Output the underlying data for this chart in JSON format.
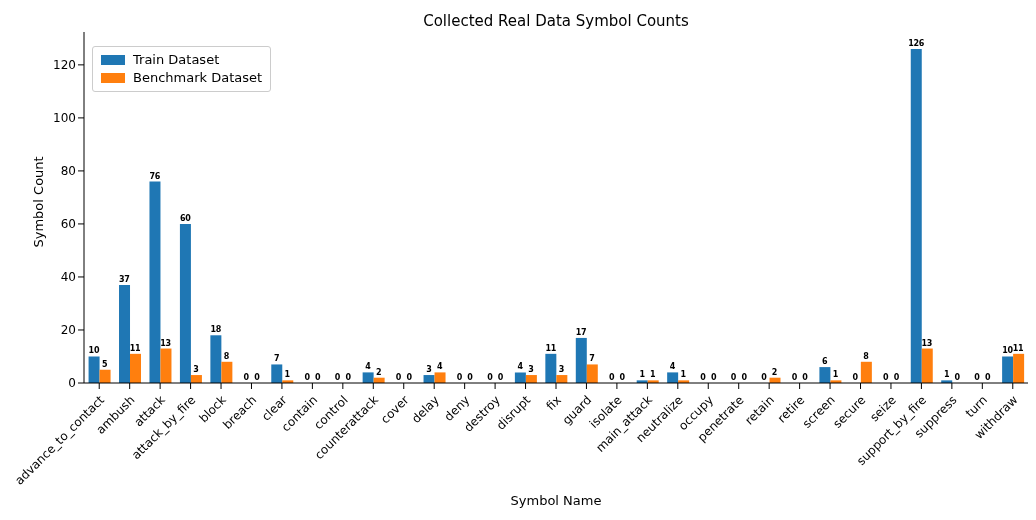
{
  "chart_data": {
    "type": "bar",
    "title": "Collected Real Data Symbol Counts",
    "xlabel": "Symbol Name",
    "ylabel": "Symbol Count",
    "categories": [
      "advance_to_contact",
      "ambush",
      "attack",
      "attack_by_fire",
      "block",
      "breach",
      "clear",
      "contain",
      "control",
      "counterattack",
      "cover",
      "delay",
      "deny",
      "destroy",
      "disrupt",
      "fix",
      "guard",
      "isolate",
      "main_attack",
      "neutralize",
      "occupy",
      "penetrate",
      "retain",
      "retire",
      "screen",
      "secure",
      "seize",
      "support_by_fire",
      "suppress",
      "turn",
      "withdraw"
    ],
    "series": [
      {
        "name": "Train Dataset",
        "color": "#1f77b4",
        "values": [
          10,
          37,
          76,
          60,
          18,
          0,
          7,
          0,
          0,
          4,
          0,
          3,
          0,
          0,
          4,
          11,
          17,
          0,
          1,
          4,
          0,
          0,
          0,
          0,
          6,
          0,
          0,
          126,
          1,
          0,
          10
        ]
      },
      {
        "name": "Benchmark Dataset",
        "color": "#ff7f0e",
        "values": [
          5,
          11,
          13,
          3,
          8,
          0,
          1,
          0,
          0,
          2,
          0,
          4,
          0,
          0,
          3,
          3,
          7,
          0,
          1,
          1,
          0,
          0,
          2,
          0,
          1,
          8,
          0,
          13,
          0,
          0,
          11
        ]
      }
    ],
    "ylim": [
      0,
      132.4
    ],
    "yticks": [
      0,
      20,
      40,
      60,
      80,
      100,
      120
    ],
    "data_labels": true,
    "legend": "top left",
    "grid": false
  }
}
